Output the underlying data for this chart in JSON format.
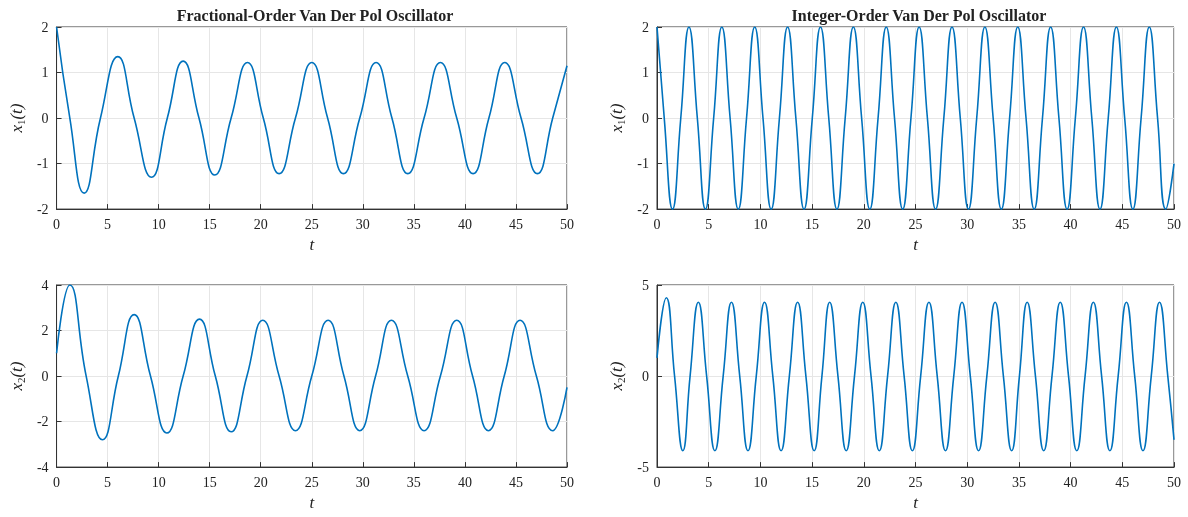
{
  "chart_data": [
    {
      "type": "line",
      "title": "Fractional-Order Van Der Pol Oscillator",
      "xlabel": "t",
      "ylabel": "x$_{1}$(t)",
      "color": "#0072bd",
      "grid": true,
      "xlim": [
        0,
        50
      ],
      "xticks": [
        0,
        5,
        10,
        15,
        20,
        25,
        30,
        35,
        40,
        45,
        50
      ],
      "ylim": [
        -2,
        2
      ],
      "yticks": [
        -2,
        -1,
        0,
        1,
        2
      ],
      "x": [
        0,
        1.3,
        2.7,
        4.3,
        6.0,
        7.6,
        9.3,
        10.85,
        12.4,
        13.95,
        15.5,
        17.1,
        18.7,
        20.25,
        21.8,
        23.4,
        25.0,
        26.55,
        28.1,
        29.7,
        31.3,
        32.85,
        34.4,
        36.0,
        37.6,
        39.2,
        40.8,
        42.35,
        43.9,
        45.5,
        47.1,
        48.6,
        50
      ],
      "values": [
        2,
        0,
        -1.65,
        0,
        1.35,
        0,
        -1.3,
        0,
        1.25,
        0,
        -1.25,
        0,
        1.22,
        0,
        -1.22,
        0,
        1.22,
        0,
        -1.22,
        0,
        1.22,
        0,
        -1.22,
        0,
        1.22,
        0,
        -1.22,
        0,
        1.22,
        0,
        -1.22,
        0,
        1.15
      ]
    },
    {
      "type": "line",
      "title": "Integer-Order Van Der Pol Oscillator",
      "xlabel": "t",
      "ylabel": "x$_{1}$(t)",
      "color": "#0072bd",
      "grid": true,
      "xlim": [
        0,
        50
      ],
      "xticks": [
        0,
        5,
        10,
        15,
        20,
        25,
        30,
        35,
        40,
        45,
        50
      ],
      "ylim": [
        -2,
        2
      ],
      "yticks": [
        -2,
        -1,
        0,
        1,
        2
      ],
      "x": [
        0,
        0.7,
        1.5,
        2.3,
        3.09,
        3.9,
        4.68,
        5.48,
        6.27,
        7.07,
        7.86,
        8.66,
        9.45,
        10.25,
        11.04,
        11.84,
        12.63,
        13.43,
        14.22,
        15.02,
        15.81,
        16.61,
        17.4,
        18.2,
        18.99,
        19.79,
        20.58,
        21.38,
        22.17,
        22.97,
        23.76,
        24.56,
        25.35,
        26.15,
        26.94,
        27.74,
        28.53,
        29.33,
        30.12,
        30.92,
        31.71,
        32.51,
        33.3,
        34.1,
        34.89,
        35.69,
        36.48,
        37.28,
        38.07,
        38.87,
        39.66,
        40.46,
        41.25,
        42.05,
        42.84,
        43.64,
        44.43,
        45.23,
        46.02,
        46.82,
        47.61,
        48.41,
        49.2,
        50
      ],
      "values": [
        2,
        0,
        -2,
        0,
        2,
        0,
        -2,
        0,
        2,
        0,
        -2,
        0,
        2,
        0,
        -2,
        0,
        2,
        0,
        -2,
        0,
        2,
        0,
        -2,
        0,
        2,
        0,
        -2,
        0,
        2,
        0,
        -2,
        0,
        2,
        0,
        -2,
        0,
        2,
        0,
        -2,
        0,
        2,
        0,
        -2,
        0,
        2,
        0,
        -2,
        0,
        2,
        0,
        -2,
        0,
        2,
        0,
        -2,
        0,
        2,
        0,
        -2,
        0,
        2,
        0,
        -2,
        -1
      ]
    },
    {
      "type": "line",
      "xlabel": "t",
      "ylabel": "x$_{2}$(t)",
      "color": "#0072bd",
      "grid": true,
      "xlim": [
        0,
        50
      ],
      "xticks": [
        0,
        5,
        10,
        15,
        20,
        25,
        30,
        35,
        40,
        45,
        50
      ],
      "ylim": [
        -4,
        4
      ],
      "yticks": [
        -4,
        -2,
        0,
        2,
        4
      ],
      "x": [
        0,
        1.3,
        2.9,
        4.5,
        6.05,
        7.6,
        9.2,
        10.8,
        12.4,
        14.0,
        15.55,
        17.1,
        18.65,
        20.2,
        21.8,
        23.4,
        25.0,
        26.6,
        28.15,
        29.7,
        31.25,
        32.8,
        34.4,
        36.0,
        37.6,
        39.2,
        40.75,
        42.3,
        43.85,
        45.4,
        47.0,
        48.6,
        50
      ],
      "values": [
        1,
        4,
        0,
        -2.8,
        0,
        2.7,
        0,
        -2.5,
        0,
        2.5,
        0,
        -2.45,
        0,
        2.45,
        0,
        -2.4,
        0,
        2.45,
        0,
        -2.4,
        0,
        2.45,
        0,
        -2.4,
        0,
        2.45,
        0,
        -2.4,
        0,
        2.45,
        0,
        -2.4,
        -0.5
      ]
    },
    {
      "type": "line",
      "xlabel": "t",
      "ylabel": "x$_{2}$(t)",
      "color": "#0072bd",
      "grid": true,
      "xlim": [
        0,
        50
      ],
      "xticks": [
        0,
        5,
        10,
        15,
        20,
        25,
        30,
        35,
        40,
        45,
        50
      ],
      "ylim": [
        -5,
        5
      ],
      "yticks": [
        -5,
        0,
        5
      ],
      "x": [
        0,
        0.9,
        1.7,
        2.5,
        3.2,
        4.0,
        4.8,
        5.6,
        6.4,
        7.2,
        8.0,
        8.8,
        9.6,
        10.4,
        11.2,
        12.0,
        12.8,
        13.6,
        14.4,
        15.2,
        15.95,
        16.7,
        17.5,
        18.3,
        19.1,
        19.9,
        20.7,
        21.5,
        22.3,
        23.1,
        23.9,
        24.7,
        25.5,
        26.3,
        27.1,
        27.9,
        28.7,
        29.5,
        30.3,
        31.1,
        31.9,
        32.7,
        33.5,
        34.3,
        35.05,
        35.8,
        36.6,
        37.4,
        38.2,
        39.0,
        39.8,
        40.6,
        41.4,
        42.2,
        43.0,
        43.8,
        44.6,
        45.4,
        46.2,
        47.0,
        47.8,
        48.6,
        49.4,
        50
      ],
      "values": [
        1,
        4.3,
        0,
        -4.1,
        0,
        4.05,
        0,
        -4.1,
        0,
        4.05,
        0,
        -4.1,
        0,
        4.05,
        0,
        -4.1,
        0,
        4.05,
        0,
        -4.1,
        0,
        4.05,
        0,
        -4.1,
        0,
        4.05,
        0,
        -4.1,
        0,
        4.05,
        0,
        -4.1,
        0,
        4.05,
        0,
        -4.1,
        0,
        4.05,
        0,
        -4.1,
        0,
        4.05,
        0,
        -4.1,
        0,
        4.05,
        0,
        -4.1,
        0,
        4.05,
        0,
        -4.1,
        0,
        4.05,
        0,
        -4.1,
        0,
        4.05,
        0,
        -4.1,
        0,
        4.05,
        0,
        -3.5
      ]
    }
  ]
}
